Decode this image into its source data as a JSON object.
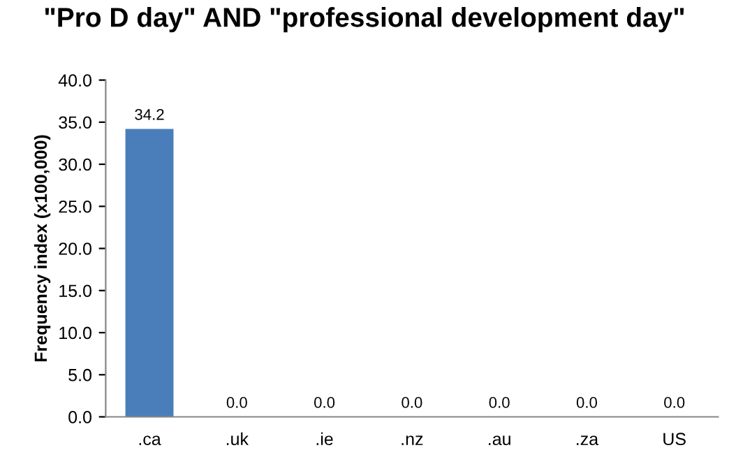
{
  "chart_data": {
    "type": "bar",
    "title": "\"Pro D day\" AND \"professional development day\"",
    "ylabel": "Frequency index (x100,000)",
    "categories": [
      ".ca",
      ".uk",
      ".ie",
      ".nz",
      ".au",
      ".za",
      "US"
    ],
    "values": [
      34.2,
      0,
      0,
      0,
      0,
      0,
      0
    ],
    "value_labels": [
      "34.2",
      "0.0",
      "0.0",
      "0.0",
      "0.0",
      "0.0",
      "0.0"
    ],
    "color": "#4a7ebb",
    "ylim": [
      0,
      40
    ],
    "yticks": [
      {
        "value": 0,
        "label": "0.0"
      },
      {
        "value": 5,
        "label": "5.0"
      },
      {
        "value": 10,
        "label": "10.0"
      },
      {
        "value": 15,
        "label": "15.0"
      },
      {
        "value": 20,
        "label": "20.0"
      },
      {
        "value": 25,
        "label": "25.0"
      },
      {
        "value": 30,
        "label": "30.0"
      },
      {
        "value": 35,
        "label": "35.0"
      },
      {
        "value": 40,
        "label": "40.0"
      }
    ],
    "grid": false
  }
}
